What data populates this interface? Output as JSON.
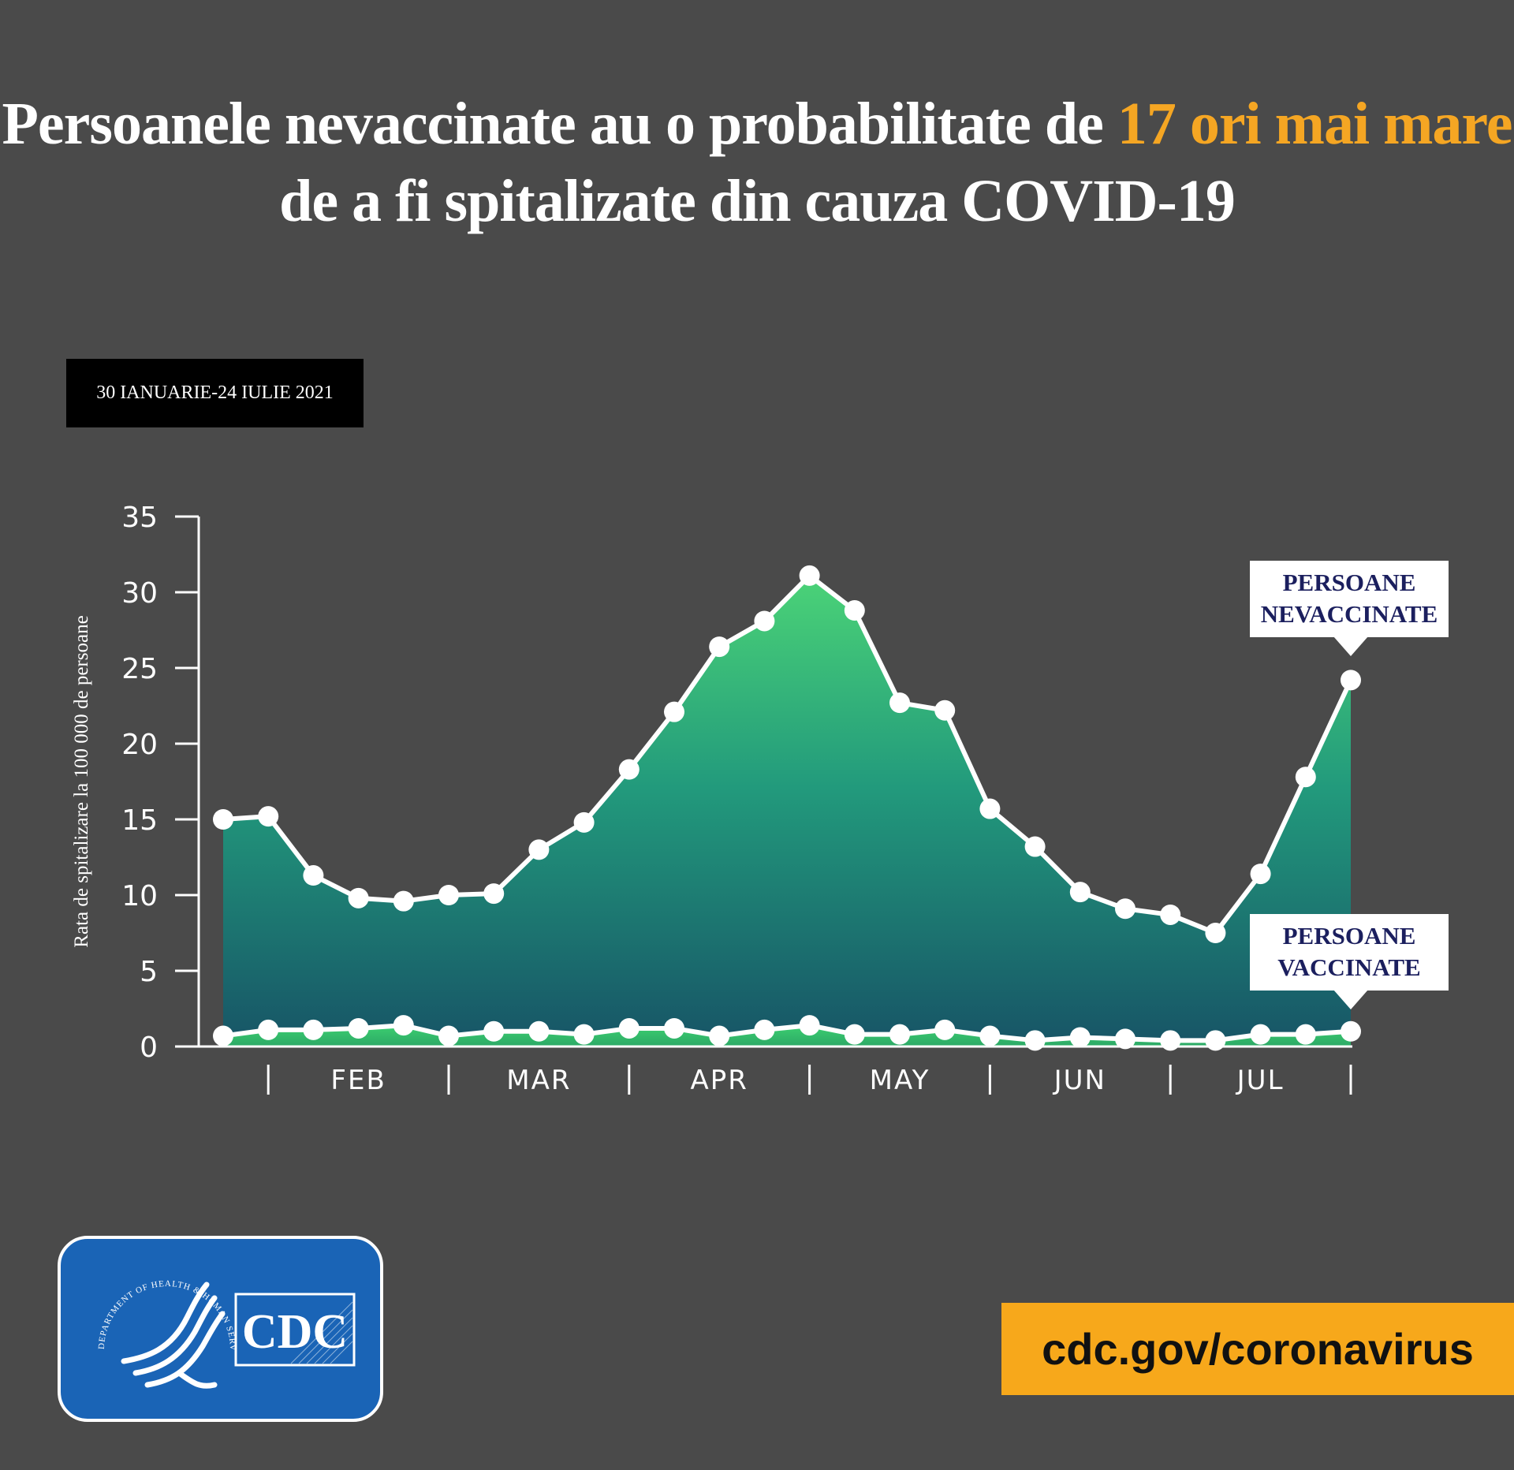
{
  "header": {
    "title_part1": "Persoanele nevaccinate au o probabilitate de ",
    "title_highlight": "17 ori mai mare",
    "title_line2": "de a fi spitalizate din cauza COVID-19",
    "highlight_color": "#f5a623"
  },
  "date_range": "30 IANUARIE-24 IULIE 2021",
  "logo": {
    "text": "CDC",
    "seal_text": "DEPARTMENT OF HEALTH & HUMAN SERVICES · USA"
  },
  "footer": {
    "url": "cdc.gov/coronavirus"
  },
  "chart_data": {
    "type": "area",
    "ylabel": "Rata de spitalizare la 100 000 de persoane",
    "ylim": [
      0,
      35
    ],
    "yticks": [
      0,
      5,
      10,
      15,
      20,
      25,
      30,
      35
    ],
    "month_labels": [
      "FEB",
      "MAR",
      "APR",
      "MAY",
      "JUN",
      "JUL"
    ],
    "n_points": 26,
    "month_boundaries": [
      1,
      5,
      9,
      13,
      17,
      21,
      25
    ],
    "grid": false,
    "series": [
      {
        "name": "PERSOANE NEVACCINATE",
        "label_lines": [
          "PERSOANE",
          "NEVACCINATE"
        ],
        "values": [
          15.0,
          15.2,
          11.3,
          9.8,
          9.6,
          10.0,
          10.1,
          13.0,
          14.8,
          18.3,
          22.1,
          26.4,
          28.1,
          31.1,
          28.8,
          22.7,
          22.2,
          15.7,
          13.2,
          10.2,
          9.1,
          8.7,
          7.5,
          11.4,
          17.8,
          24.2
        ]
      },
      {
        "name": "PERSOANE VACCINATE",
        "label_lines": [
          "PERSOANE",
          "VACCINATE"
        ],
        "values": [
          0.7,
          1.1,
          1.1,
          1.2,
          1.4,
          0.7,
          1.0,
          1.0,
          0.8,
          1.2,
          1.2,
          0.7,
          1.1,
          1.4,
          0.8,
          0.8,
          1.1,
          0.7,
          0.4,
          0.6,
          0.5,
          0.4,
          0.4,
          0.8,
          0.8,
          1.0
        ]
      }
    ]
  }
}
